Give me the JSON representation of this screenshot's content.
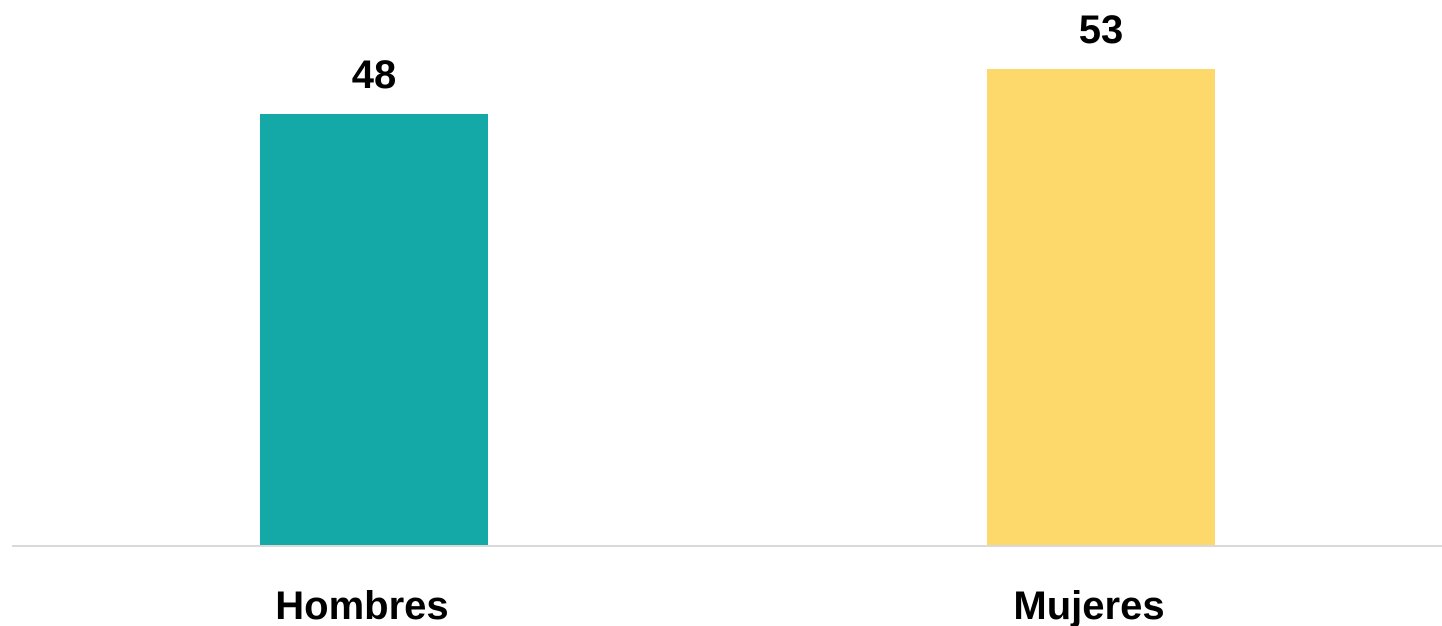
{
  "chart_data": {
    "type": "bar",
    "categories": [
      "Hombres",
      "Mujeres"
    ],
    "values": [
      48,
      53
    ],
    "colors": [
      "#14A8A6",
      "#FCD96A"
    ],
    "axis_color": "#D9D9D9",
    "ylim": [
      0,
      53
    ],
    "grid": false,
    "data_labels": true
  }
}
